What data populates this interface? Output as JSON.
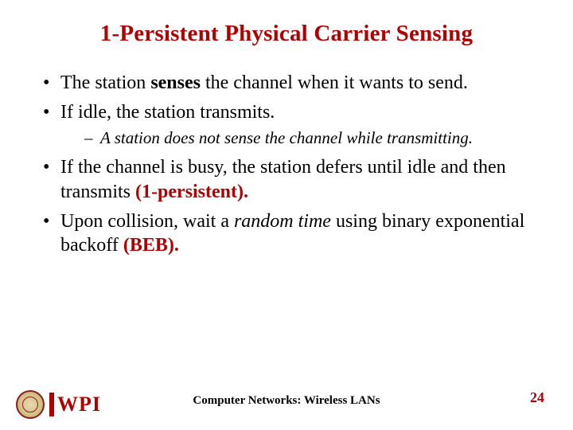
{
  "title": "1-Persistent Physical Carrier Sensing",
  "accent_color": "#b00000",
  "text_color": "#000000",
  "background_color": "#ffffff",
  "title_font_family": "Comic Sans MS",
  "body_font_family": "Times New Roman",
  "title_fontsize_pt": 29,
  "body_fontsize_pt": 24,
  "sub_fontsize_pt": 21,
  "bullets": {
    "b1_pre": "The station ",
    "b1_bold": "senses",
    "b1_post": " the channel when it wants to send.",
    "b2": "If idle, the station transmits.",
    "b2_sub": "A station does not sense the channel while transmitting.",
    "b3_pre": "If the channel is busy, the station defers until idle and then transmits ",
    "b3_accent": "(1-persistent).",
    "b4_pre": "Upon collision, wait a ",
    "b4_ital": "random time",
    "b4_mid": " using binary exponential backoff ",
    "b4_accent": "(BEB)."
  },
  "footer": "Computer Networks: Wireless LANs",
  "page_number": "24",
  "logo_text": "WPI"
}
